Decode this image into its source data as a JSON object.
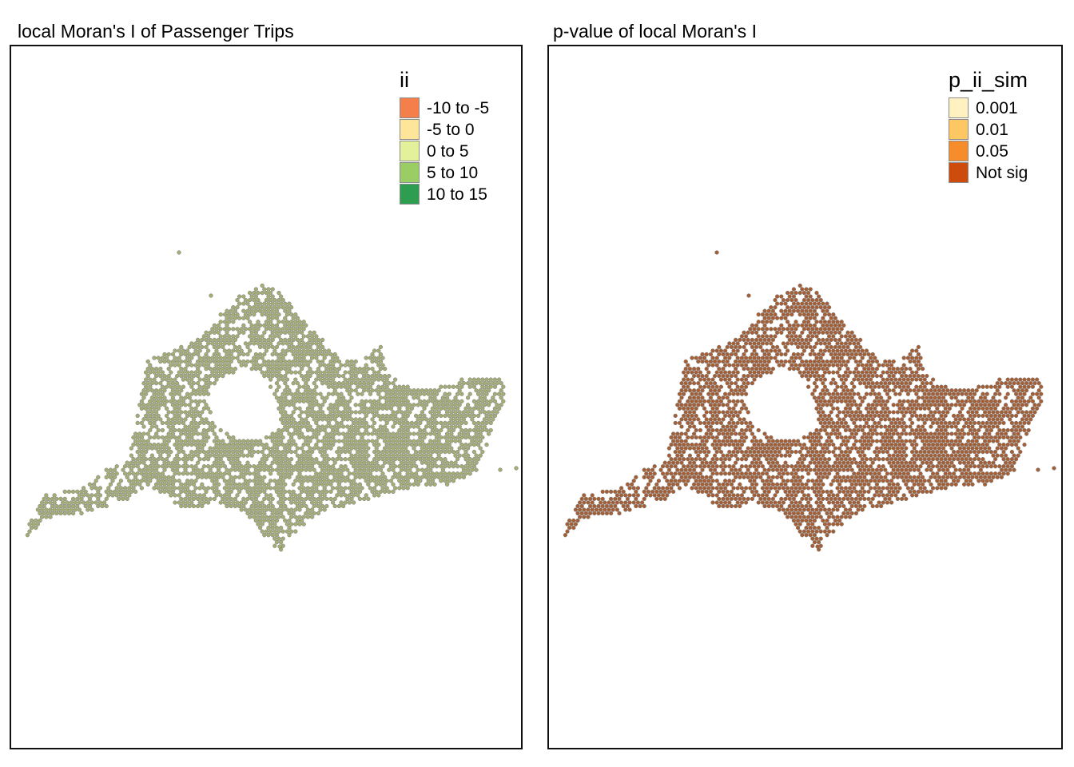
{
  "panels": [
    {
      "title": "local Moran's I of Passenger Trips",
      "legend": {
        "title": "ii",
        "items": [
          {
            "label": "-10 to -5",
            "color": "#f47f4b"
          },
          {
            "label": "-5 to 0",
            "color": "#fde599"
          },
          {
            "label": "0 to 5",
            "color": "#e3f19b"
          },
          {
            "label": "5 to 10",
            "color": "#9acd63"
          },
          {
            "label": "10 to 15",
            "color": "#2e9d4f"
          }
        ]
      },
      "map_color": "#a4ad74"
    },
    {
      "title": "p-value of local Moran's I",
      "legend": {
        "title": "p_ii_sim",
        "items": [
          {
            "label": "0.001",
            "color": "#fff1c0"
          },
          {
            "label": "0.01",
            "color": "#fdc761"
          },
          {
            "label": "0.05",
            "color": "#f68c2a"
          },
          {
            "label": "Not sig",
            "color": "#cd4b0b"
          }
        ]
      },
      "map_color": "#a65f35"
    }
  ]
}
